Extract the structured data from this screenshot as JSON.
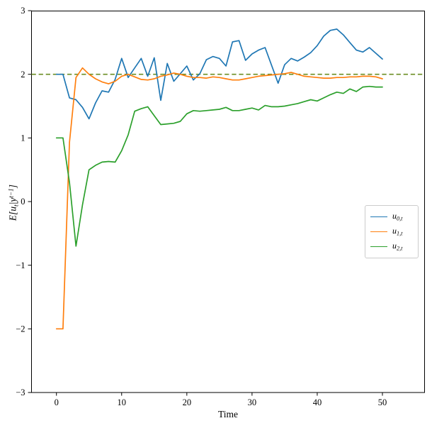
{
  "figure": {
    "background": "#ffffff",
    "axes_box_color": "#000000"
  },
  "axis": {
    "xlabel": "Time",
    "xtick_labels": [
      "0",
      "10",
      "20",
      "30",
      "40",
      "50"
    ],
    "ytick_labels": [
      "−3",
      "−2",
      "−1",
      "0",
      "1",
      "2",
      "3"
    ]
  },
  "ylabel_parts": {
    "p1": "E[u",
    "sub": "t",
    "p2": "|y",
    "sup": "t−1",
    "p3": "]"
  },
  "legend": {
    "items": [
      {
        "base": "u",
        "sub": "0,t",
        "color": "#1f77b4"
      },
      {
        "base": "u",
        "sub": "1,t",
        "color": "#ff7f0e"
      },
      {
        "base": "u",
        "sub": "2,t",
        "color": "#2ca02c"
      }
    ]
  },
  "chart_data": {
    "type": "line",
    "title": "",
    "xlabel": "Time",
    "ylabel": "E[u_t | y^(t-1)]",
    "xticks": [
      0,
      10,
      20,
      30,
      40,
      50
    ],
    "yticks": [
      -3,
      -2,
      -1,
      0,
      1,
      2,
      3
    ],
    "ylim": [
      -3,
      3
    ],
    "grid": false,
    "legend_position": "center right",
    "reference_line": {
      "y": 2.0,
      "style": "dashed",
      "color": "#6b8e23"
    },
    "x": [
      0,
      1,
      2,
      3,
      4,
      5,
      6,
      7,
      8,
      9,
      10,
      11,
      12,
      13,
      14,
      15,
      16,
      17,
      18,
      19,
      20,
      21,
      22,
      23,
      24,
      25,
      26,
      27,
      28,
      29,
      30,
      31,
      32,
      33,
      34,
      35,
      36,
      37,
      38,
      39,
      40,
      41,
      42,
      43,
      44,
      45,
      46,
      47,
      48,
      49,
      50
    ],
    "series": [
      {
        "name": "u_{0,t}",
        "color": "#1f77b4",
        "values": [
          2.0,
          2.0,
          1.63,
          1.6,
          1.48,
          1.3,
          1.55,
          1.74,
          1.72,
          1.92,
          2.25,
          1.95,
          2.1,
          2.25,
          1.97,
          2.26,
          1.59,
          2.17,
          1.89,
          2.01,
          2.13,
          1.91,
          2.01,
          2.23,
          2.28,
          2.25,
          2.13,
          2.51,
          2.53,
          2.22,
          2.32,
          2.38,
          2.42,
          2.14,
          1.86,
          2.15,
          2.25,
          2.21,
          2.27,
          2.34,
          2.45,
          2.6,
          2.69,
          2.71,
          2.62,
          2.5,
          2.38,
          2.35,
          2.42,
          2.33,
          2.24
        ]
      },
      {
        "name": "u_{1,t}",
        "color": "#ff7f0e",
        "values": [
          -2.0,
          -2.0,
          0.93,
          1.95,
          2.1,
          2.0,
          1.93,
          1.88,
          1.85,
          1.89,
          1.97,
          2.0,
          1.96,
          1.92,
          1.91,
          1.93,
          1.97,
          1.99,
          2.02,
          2.0,
          1.97,
          1.95,
          1.95,
          1.94,
          1.96,
          1.95,
          1.93,
          1.91,
          1.91,
          1.93,
          1.95,
          1.97,
          1.98,
          1.99,
          2.0,
          2.01,
          2.03,
          2.0,
          1.97,
          1.96,
          1.95,
          1.94,
          1.94,
          1.95,
          1.95,
          1.96,
          1.96,
          1.97,
          1.97,
          1.96,
          1.93
        ]
      },
      {
        "name": "u_{2,t}",
        "color": "#2ca02c",
        "values": [
          1.0,
          1.0,
          0.3,
          -0.7,
          -0.05,
          0.5,
          0.57,
          0.62,
          0.63,
          0.62,
          0.8,
          1.05,
          1.42,
          1.46,
          1.49,
          1.35,
          1.21,
          1.22,
          1.23,
          1.26,
          1.38,
          1.43,
          1.42,
          1.43,
          1.44,
          1.45,
          1.48,
          1.43,
          1.43,
          1.45,
          1.47,
          1.44,
          1.51,
          1.49,
          1.49,
          1.5,
          1.52,
          1.54,
          1.57,
          1.6,
          1.58,
          1.63,
          1.68,
          1.72,
          1.7,
          1.77,
          1.73,
          1.8,
          1.81,
          1.8,
          1.8
        ]
      }
    ]
  }
}
